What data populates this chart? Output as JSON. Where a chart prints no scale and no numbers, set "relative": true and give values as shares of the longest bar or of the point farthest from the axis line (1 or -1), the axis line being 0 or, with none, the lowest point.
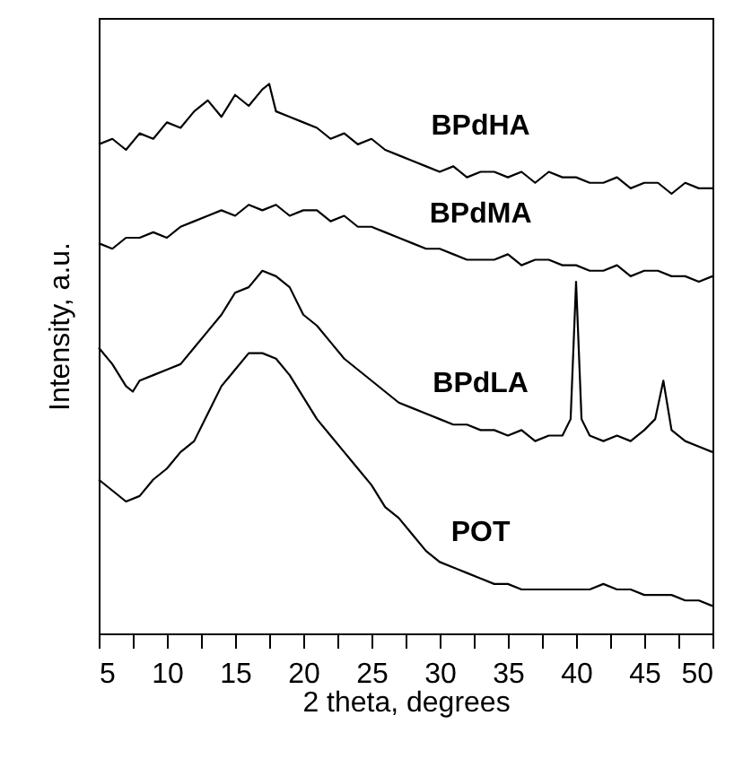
{
  "chart_data": {
    "type": "line",
    "relative": true,
    "xlabel": "2 theta, degrees",
    "ylabel": "Intensity, a.u.",
    "xlim": [
      5,
      50
    ],
    "xticks": [
      5,
      {
        "value": 7.5,
        "label": null
      },
      10,
      {
        "value": 12.5,
        "label": null
      },
      15,
      {
        "value": 17.5,
        "label": null
      },
      20,
      {
        "value": 22.5,
        "label": null
      },
      25,
      {
        "value": 27.5,
        "label": null
      },
      30,
      {
        "value": 32.5,
        "label": null
      },
      35,
      {
        "value": 37.5,
        "label": null
      },
      40,
      {
        "value": 42.5,
        "label": null
      },
      45,
      {
        "value": 47.5,
        "label": null
      },
      50
    ],
    "grid": false,
    "series": [
      {
        "name": "BPdHA",
        "color": "#000000",
        "x": [
          5,
          6,
          7,
          8,
          9,
          10,
          11,
          12,
          13,
          14,
          15,
          16,
          17,
          17.5,
          18,
          19,
          20,
          21,
          22,
          23,
          24,
          25,
          26,
          27,
          28,
          29,
          30,
          31,
          32,
          33,
          34,
          35,
          36,
          37,
          38,
          39,
          40,
          41,
          42,
          43,
          44,
          45,
          46,
          47,
          48,
          49,
          50
        ],
        "values": [
          0.89,
          0.9,
          0.88,
          0.91,
          0.9,
          0.93,
          0.92,
          0.95,
          0.97,
          0.94,
          0.98,
          0.96,
          0.99,
          1.0,
          0.95,
          0.94,
          0.93,
          0.92,
          0.9,
          0.91,
          0.89,
          0.9,
          0.88,
          0.87,
          0.86,
          0.85,
          0.84,
          0.85,
          0.83,
          0.84,
          0.84,
          0.83,
          0.84,
          0.82,
          0.84,
          0.83,
          0.83,
          0.82,
          0.82,
          0.83,
          0.81,
          0.82,
          0.82,
          0.8,
          0.82,
          0.81,
          0.81
        ]
      },
      {
        "name": "BPdMA",
        "color": "#000000",
        "x": [
          5,
          6,
          7,
          8,
          9,
          10,
          11,
          12,
          13,
          14,
          15,
          16,
          17,
          18,
          19,
          20,
          21,
          22,
          23,
          24,
          25,
          26,
          27,
          28,
          29,
          30,
          31,
          32,
          33,
          34,
          35,
          36,
          37,
          38,
          39,
          40,
          41,
          42,
          43,
          44,
          45,
          46,
          47,
          48,
          49,
          50
        ],
        "values": [
          0.71,
          0.7,
          0.72,
          0.72,
          0.73,
          0.72,
          0.74,
          0.75,
          0.76,
          0.77,
          0.76,
          0.78,
          0.77,
          0.78,
          0.76,
          0.77,
          0.77,
          0.75,
          0.76,
          0.74,
          0.74,
          0.73,
          0.72,
          0.71,
          0.7,
          0.7,
          0.69,
          0.68,
          0.68,
          0.68,
          0.69,
          0.67,
          0.68,
          0.68,
          0.67,
          0.67,
          0.66,
          0.66,
          0.67,
          0.65,
          0.66,
          0.66,
          0.65,
          0.65,
          0.64,
          0.65
        ]
      },
      {
        "name": "BPdLA",
        "color": "#000000",
        "x": [
          5,
          6,
          7,
          7.5,
          8,
          9,
          10,
          11,
          12,
          13,
          14,
          15,
          16,
          17,
          18,
          19,
          20,
          21,
          22,
          23,
          24,
          25,
          26,
          27,
          28,
          29,
          30,
          31,
          32,
          33,
          34,
          35,
          36,
          37,
          38,
          39,
          39.6,
          40,
          40.4,
          41,
          42,
          43,
          44,
          45,
          45.8,
          46.4,
          47,
          48,
          49,
          50
        ],
        "values": [
          0.52,
          0.49,
          0.45,
          0.44,
          0.46,
          0.47,
          0.48,
          0.49,
          0.52,
          0.55,
          0.58,
          0.62,
          0.63,
          0.66,
          0.65,
          0.63,
          0.58,
          0.56,
          0.53,
          0.5,
          0.48,
          0.46,
          0.44,
          0.42,
          0.41,
          0.4,
          0.39,
          0.38,
          0.38,
          0.37,
          0.37,
          0.36,
          0.37,
          0.35,
          0.36,
          0.36,
          0.39,
          0.64,
          0.39,
          0.36,
          0.35,
          0.36,
          0.35,
          0.37,
          0.39,
          0.46,
          0.37,
          0.35,
          0.34,
          0.33
        ]
      },
      {
        "name": "POT",
        "color": "#000000",
        "x": [
          5,
          6,
          7,
          8,
          9,
          10,
          11,
          12,
          13,
          14,
          15,
          16,
          17,
          18,
          19,
          20,
          21,
          22,
          23,
          24,
          25,
          26,
          27,
          28,
          29,
          30,
          31,
          32,
          33,
          34,
          35,
          36,
          37,
          38,
          39,
          40,
          41,
          42,
          43,
          44,
          45,
          46,
          47,
          48,
          49,
          50
        ],
        "values": [
          0.28,
          0.26,
          0.24,
          0.25,
          0.28,
          0.3,
          0.33,
          0.35,
          0.4,
          0.45,
          0.48,
          0.51,
          0.51,
          0.5,
          0.47,
          0.43,
          0.39,
          0.36,
          0.33,
          0.3,
          0.27,
          0.23,
          0.21,
          0.18,
          0.15,
          0.13,
          0.12,
          0.11,
          0.1,
          0.09,
          0.09,
          0.08,
          0.08,
          0.08,
          0.08,
          0.08,
          0.08,
          0.09,
          0.08,
          0.08,
          0.07,
          0.07,
          0.07,
          0.06,
          0.06,
          0.05
        ]
      }
    ]
  }
}
